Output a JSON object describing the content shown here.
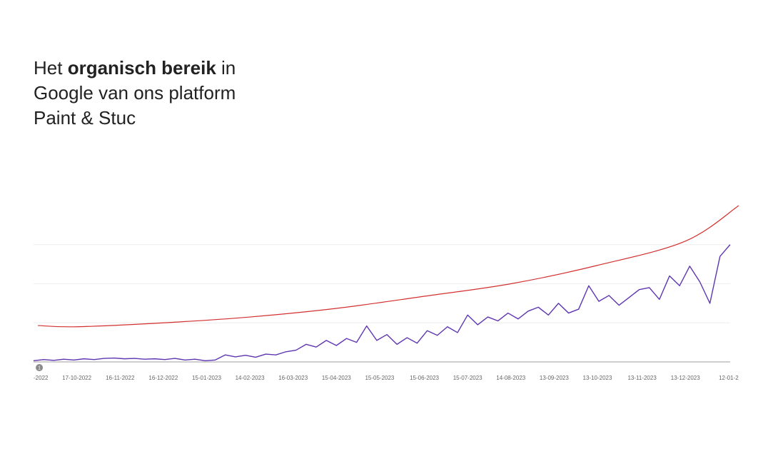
{
  "chart_data": {
    "type": "line",
    "title_parts": [
      "Het",
      "organisch bereik",
      "in",
      "Google van ons platform",
      "Paint & Stuc"
    ],
    "xlim": [
      "2022-09-17",
      "2024-01-19"
    ],
    "ylim": [
      0,
      4
    ],
    "grid_lines": [
      0,
      1,
      2,
      3
    ],
    "xticks": [
      {
        "value": "2022-09-17",
        "label": "-2022"
      },
      {
        "value": "2022-10-17",
        "label": "17-10-2022"
      },
      {
        "value": "2022-11-16",
        "label": "16-11-2022"
      },
      {
        "value": "2022-12-16",
        "label": "16-12-2022"
      },
      {
        "value": "2023-01-15",
        "label": "15-01-2023"
      },
      {
        "value": "2023-02-14",
        "label": "14-02-2023"
      },
      {
        "value": "2023-03-16",
        "label": "16-03-2023"
      },
      {
        "value": "2023-04-15",
        "label": "15-04-2023"
      },
      {
        "value": "2023-05-15",
        "label": "15-05-2023"
      },
      {
        "value": "2023-06-15",
        "label": "15-06-2023"
      },
      {
        "value": "2023-07-15",
        "label": "15-07-2023"
      },
      {
        "value": "2023-08-14",
        "label": "14-08-2023"
      },
      {
        "value": "2023-09-13",
        "label": "13-09-2023"
      },
      {
        "value": "2023-10-13",
        "label": "13-10-2023"
      },
      {
        "value": "2023-11-13",
        "label": "13-11-2023"
      },
      {
        "value": "2023-12-13",
        "label": "13-12-2023"
      },
      {
        "value": "2024-01-12",
        "label": "12-01-2"
      }
    ],
    "annotation": {
      "x": "2022-09-21",
      "label": "1"
    },
    "series": [
      {
        "color": "#5e35b1",
        "x": [
          "2022-09-17",
          "2022-09-24",
          "2022-10-01",
          "2022-10-08",
          "2022-10-15",
          "2022-10-22",
          "2022-10-29",
          "2022-11-05",
          "2022-11-12",
          "2022-11-19",
          "2022-11-26",
          "2022-12-03",
          "2022-12-10",
          "2022-12-17",
          "2022-12-24",
          "2022-12-31",
          "2023-01-07",
          "2023-01-14",
          "2023-01-21",
          "2023-01-28",
          "2023-02-04",
          "2023-02-11",
          "2023-02-18",
          "2023-02-25",
          "2023-03-04",
          "2023-03-11",
          "2023-03-18",
          "2023-03-25",
          "2023-04-01",
          "2023-04-08",
          "2023-04-15",
          "2023-04-22",
          "2023-04-29",
          "2023-05-06",
          "2023-05-13",
          "2023-05-20",
          "2023-05-27",
          "2023-06-03",
          "2023-06-10",
          "2023-06-17",
          "2023-06-24",
          "2023-07-01",
          "2023-07-08",
          "2023-07-15",
          "2023-07-22",
          "2023-07-29",
          "2023-08-05",
          "2023-08-12",
          "2023-08-19",
          "2023-08-26",
          "2023-09-02",
          "2023-09-09",
          "2023-09-16",
          "2023-09-23",
          "2023-09-30",
          "2023-10-07",
          "2023-10-14",
          "2023-10-21",
          "2023-10-28",
          "2023-11-04",
          "2023-11-11",
          "2023-11-18",
          "2023-11-25",
          "2023-12-02",
          "2023-12-09",
          "2023-12-16",
          "2023-12-23",
          "2023-12-30",
          "2024-01-06",
          "2024-01-13"
        ],
        "values": [
          0.03,
          0.06,
          0.04,
          0.07,
          0.05,
          0.08,
          0.06,
          0.09,
          0.1,
          0.08,
          0.09,
          0.07,
          0.08,
          0.06,
          0.09,
          0.05,
          0.07,
          0.03,
          0.05,
          0.18,
          0.13,
          0.17,
          0.12,
          0.2,
          0.18,
          0.26,
          0.3,
          0.45,
          0.38,
          0.55,
          0.42,
          0.6,
          0.5,
          0.92,
          0.55,
          0.7,
          0.45,
          0.62,
          0.48,
          0.8,
          0.68,
          0.9,
          0.75,
          1.2,
          0.95,
          1.15,
          1.05,
          1.25,
          1.1,
          1.3,
          1.4,
          1.2,
          1.5,
          1.25,
          1.35,
          1.95,
          1.55,
          1.7,
          1.45,
          1.65,
          1.85,
          1.9,
          1.6,
          2.2,
          1.95,
          2.45,
          2.05,
          1.5,
          2.7,
          3.0
        ]
      },
      {
        "color": "#d32f2f",
        "x": [
          "2022-09-20",
          "2022-10-17",
          "2022-12-16",
          "2023-02-14",
          "2023-04-15",
          "2023-06-15",
          "2023-08-14",
          "2023-10-13",
          "2023-12-13",
          "2024-01-19"
        ],
        "values": [
          0.93,
          0.9,
          1.0,
          1.15,
          1.37,
          1.68,
          2.0,
          2.47,
          3.09,
          4.0
        ]
      }
    ]
  }
}
